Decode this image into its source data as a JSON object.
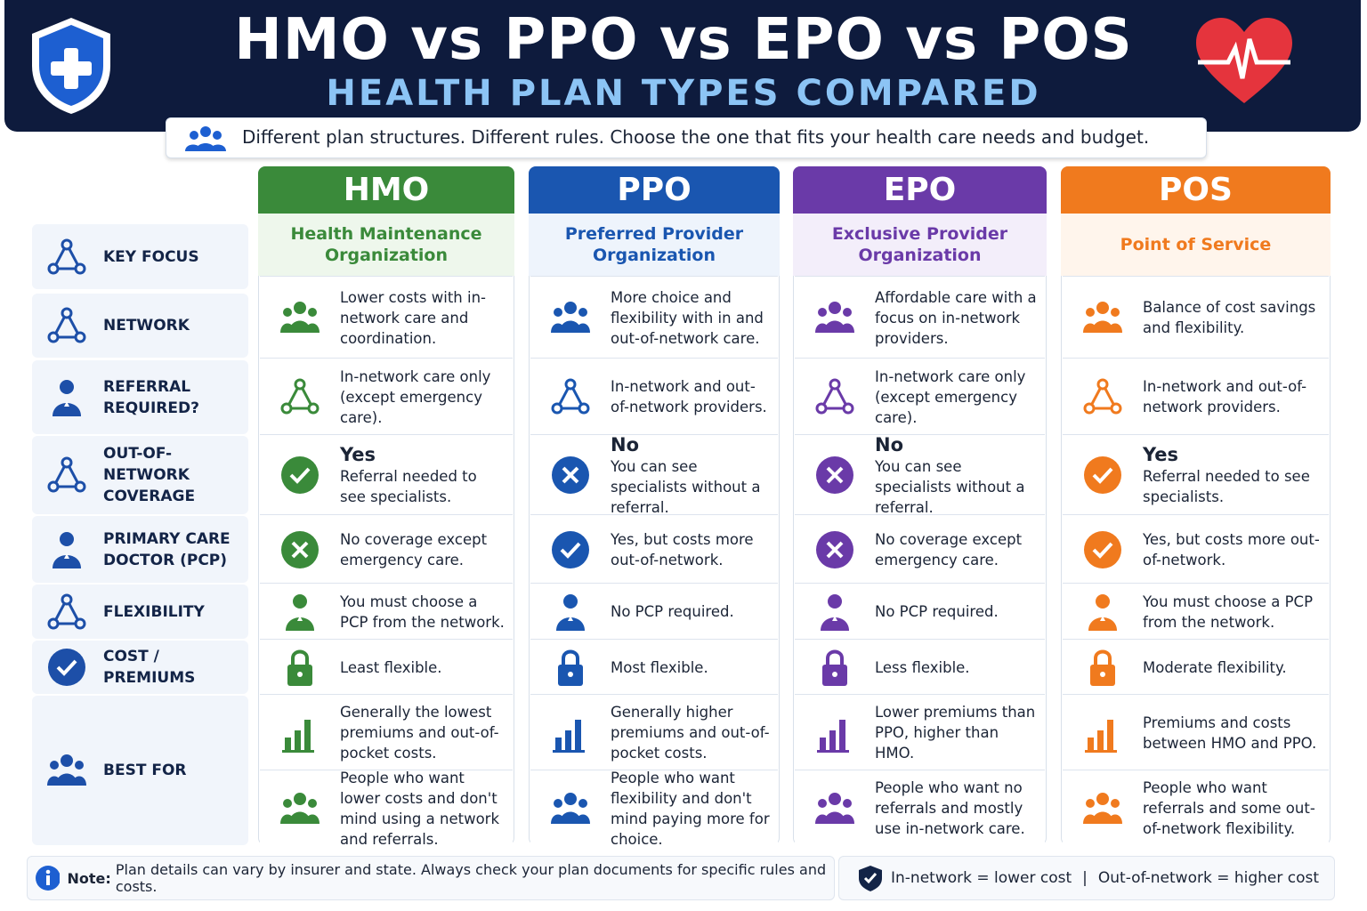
{
  "header": {
    "title": "HMO vs PPO vs EPO vs POS",
    "subtitle": "HEALTH PLAN TYPES COMPARED",
    "tagline": "Different plan structures. Different rules. Choose the one that fits your health care needs and budget."
  },
  "row_labels": [
    "KEY FOCUS",
    "NETWORK",
    "REFERRAL REQUIRED?",
    "OUT-OF-NETWORK COVERAGE",
    "PRIMARY CARE DOCTOR (PCP)",
    "FLEXIBILITY",
    "COST / PREMIUMS",
    "BEST FOR"
  ],
  "plans": [
    {
      "name": "HMO",
      "full_name": "Health Maintenance Organization",
      "cells": [
        {
          "text": "Lower costs with in-network care and coordination."
        },
        {
          "text": "In-network care only (except emergency care)."
        },
        {
          "heading": "Yes",
          "text": "Referral needed to see specialists."
        },
        {
          "text": "No coverage except emergency care."
        },
        {
          "text": "You must choose a PCP from the network."
        },
        {
          "text": "Least flexible."
        },
        {
          "text": "Generally the lowest premiums and out-of-pocket costs."
        },
        {
          "text": "People who want lower costs and don't mind using a network and referrals."
        }
      ]
    },
    {
      "name": "PPO",
      "full_name": "Preferred Provider Organization",
      "cells": [
        {
          "text": "More choice and flexibility with in and out-of-network care."
        },
        {
          "text": "In-network and out-of-network providers."
        },
        {
          "heading": "No",
          "text": "You can see specialists without a referral."
        },
        {
          "text": "Yes, but costs more out-of-network."
        },
        {
          "text": "No PCP required."
        },
        {
          "text": "Most flexible."
        },
        {
          "text": "Generally higher premiums and out-of-pocket costs."
        },
        {
          "text": "People who want flexibility and don't mind paying more for choice."
        }
      ]
    },
    {
      "name": "EPO",
      "full_name": "Exclusive Provider Organization",
      "cells": [
        {
          "text": "Affordable care with a focus on in-network providers."
        },
        {
          "text": "In-network care only (except emergency care)."
        },
        {
          "heading": "No",
          "text": "You can see specialists without a referral."
        },
        {
          "text": "No coverage except emergency care."
        },
        {
          "text": "No PCP required."
        },
        {
          "text": "Less flexible."
        },
        {
          "text": "Lower premiums than PPO, higher than HMO."
        },
        {
          "text": "People who want no referrals and mostly use in-network care."
        }
      ]
    },
    {
      "name": "POS",
      "full_name": "Point of Service",
      "cells": [
        {
          "text": "Balance of cost savings and flexibility."
        },
        {
          "text": "In-network and out-of-network providers."
        },
        {
          "heading": "Yes",
          "text": "Referral needed to see specialists."
        },
        {
          "text": "Yes, but costs more out-of-network."
        },
        {
          "text": "You must choose a PCP from the network."
        },
        {
          "text": "Moderate flexibility."
        },
        {
          "text": "Premiums and costs between HMO and PPO."
        },
        {
          "text": "People who want referrals and some out-of-network flexibility."
        }
      ]
    }
  ],
  "footer": {
    "note_label": "Note:",
    "note_text": "Plan details can vary by insurer and state. Always check your plan documents for specific rules and costs.",
    "legend": [
      "In-network = lower cost",
      "Out-of-network = higher cost"
    ]
  }
}
